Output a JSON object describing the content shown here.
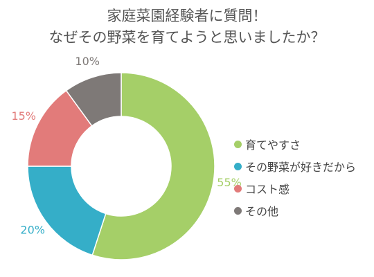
{
  "chart_data": {
    "type": "pie",
    "title": "家庭菜園経験者に質問！",
    "subtitle": "なぜその野菜を育てようと思いましたか？",
    "categories": [
      "育てやすさ",
      "その野菜が好きだから",
      "コスト感",
      "その他"
    ],
    "values": [
      55,
      20,
      15,
      10
    ],
    "value_labels": [
      "55%",
      "20%",
      "15%",
      "10%"
    ],
    "colors": [
      "#a5cf68",
      "#35aec8",
      "#e27b7a",
      "#7e7977"
    ],
    "donut": true,
    "legend_position": "right"
  }
}
